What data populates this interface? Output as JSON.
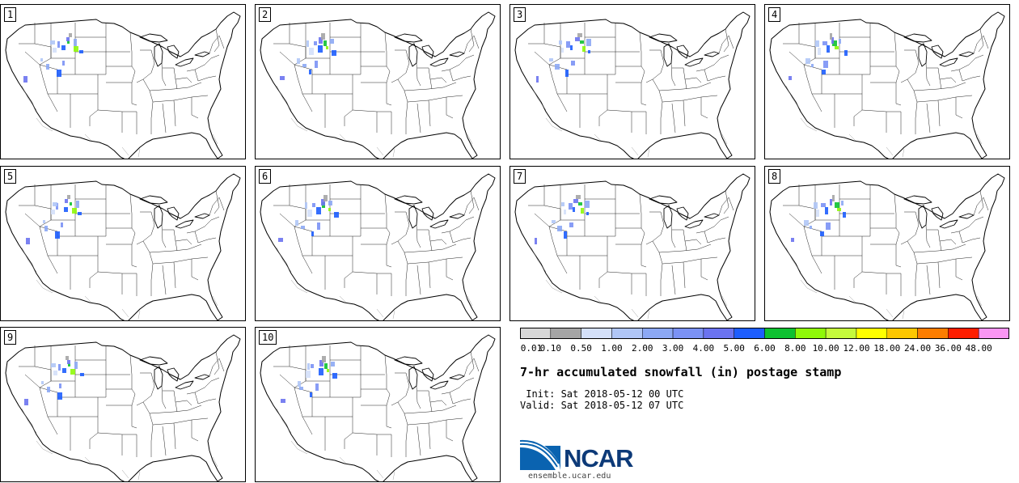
{
  "stamps": [
    {
      "label": "1"
    },
    {
      "label": "2"
    },
    {
      "label": "3"
    },
    {
      "label": "4"
    },
    {
      "label": "5"
    },
    {
      "label": "6"
    },
    {
      "label": "7"
    },
    {
      "label": "8"
    },
    {
      "label": "9"
    },
    {
      "label": "10"
    }
  ],
  "colorbar": {
    "colors": [
      "#d7d7d7",
      "#a5a5a5",
      "#d4e0f9",
      "#b0c6f6",
      "#8ca8f4",
      "#7b92f5",
      "#6b73f0",
      "#1e5efe",
      "#0ec131",
      "#8ff909",
      "#c5fa3c",
      "#ffff00",
      "#fdc700",
      "#fc7d00",
      "#fe1e00",
      "#fa96f3"
    ],
    "labels": [
      "0.01",
      "0.10",
      "0.50",
      "1.00",
      "2.00",
      "3.00",
      "4.00",
      "5.00",
      "6.00",
      "8.00",
      "10.00",
      "12.00",
      "18.00",
      "24.00",
      "36.00",
      "48.00"
    ]
  },
  "title": "7-hr accumulated snowfall (in) postage stamp",
  "init_line": " Init: Sat 2018-05-12 00 UTC",
  "valid_line": "Valid: Sat 2018-05-12 07 UTC",
  "logo": {
    "text": "NCAR",
    "color": "#0d3a78"
  },
  "website": "ensemble.ucar.edu"
}
